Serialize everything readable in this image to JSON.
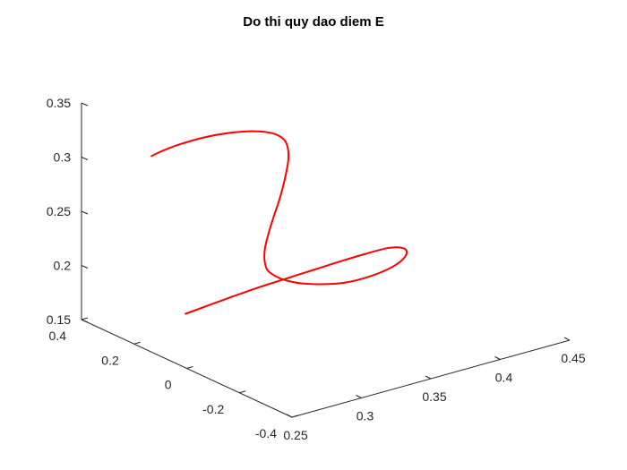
{
  "chart_data": {
    "type": "line",
    "projection": "3d",
    "title": "Do thi quy dao diem E",
    "xlabel": "",
    "ylabel": "",
    "zlabel": "",
    "grid": false,
    "xlim": [
      0.25,
      0.45
    ],
    "ylim": [
      -0.4,
      0.4
    ],
    "zlim": [
      0.15,
      0.35
    ],
    "x_ticks": [
      0.25,
      0.3,
      0.35,
      0.4,
      0.45
    ],
    "x_tick_labels": [
      "0.25",
      "0.3",
      "0.35",
      "0.4",
      "0.45"
    ],
    "y_ticks": [
      -0.4,
      -0.2,
      0,
      0.2,
      0.4
    ],
    "y_tick_labels": [
      "-0.4",
      "-0.2",
      "0",
      "0.2",
      "0.4"
    ],
    "z_ticks": [
      0.15,
      0.2,
      0.25,
      0.3,
      0.35
    ],
    "z_tick_labels": [
      "0.15",
      "0.2",
      "0.25",
      "0.3",
      "0.35"
    ],
    "series": [
      {
        "color": "#ff0000",
        "points": [
          [
            0.292,
            0.226,
            0.16
          ],
          [
            0.305,
            0.209,
            0.165
          ],
          [
            0.319,
            0.192,
            0.17
          ],
          [
            0.334,
            0.174,
            0.175
          ],
          [
            0.35,
            0.158,
            0.179
          ],
          [
            0.367,
            0.141,
            0.183
          ],
          [
            0.384,
            0.125,
            0.187
          ],
          [
            0.4,
            0.111,
            0.19
          ],
          [
            0.413,
            0.098,
            0.192
          ],
          [
            0.421,
            0.084,
            0.191
          ],
          [
            0.422,
            0.071,
            0.188
          ],
          [
            0.416,
            0.059,
            0.184
          ],
          [
            0.405,
            0.051,
            0.181
          ],
          [
            0.39,
            0.045,
            0.18
          ],
          [
            0.373,
            0.042,
            0.181
          ],
          [
            0.357,
            0.042,
            0.185
          ],
          [
            0.343,
            0.046,
            0.19
          ],
          [
            0.332,
            0.052,
            0.196
          ],
          [
            0.325,
            0.06,
            0.202
          ],
          [
            0.321,
            0.069,
            0.208
          ],
          [
            0.321,
            0.079,
            0.216
          ],
          [
            0.323,
            0.088,
            0.225
          ],
          [
            0.327,
            0.096,
            0.236
          ],
          [
            0.332,
            0.104,
            0.248
          ],
          [
            0.337,
            0.11,
            0.26
          ],
          [
            0.341,
            0.115,
            0.272
          ],
          [
            0.344,
            0.118,
            0.284
          ],
          [
            0.346,
            0.12,
            0.296
          ],
          [
            0.346,
            0.123,
            0.306
          ],
          [
            0.344,
            0.129,
            0.314
          ],
          [
            0.338,
            0.141,
            0.32
          ],
          [
            0.328,
            0.162,
            0.323
          ],
          [
            0.316,
            0.186,
            0.323
          ],
          [
            0.302,
            0.21,
            0.321
          ],
          [
            0.288,
            0.231,
            0.317
          ],
          [
            0.278,
            0.244,
            0.313
          ],
          [
            0.272,
            0.25,
            0.31
          ]
        ]
      }
    ]
  }
}
